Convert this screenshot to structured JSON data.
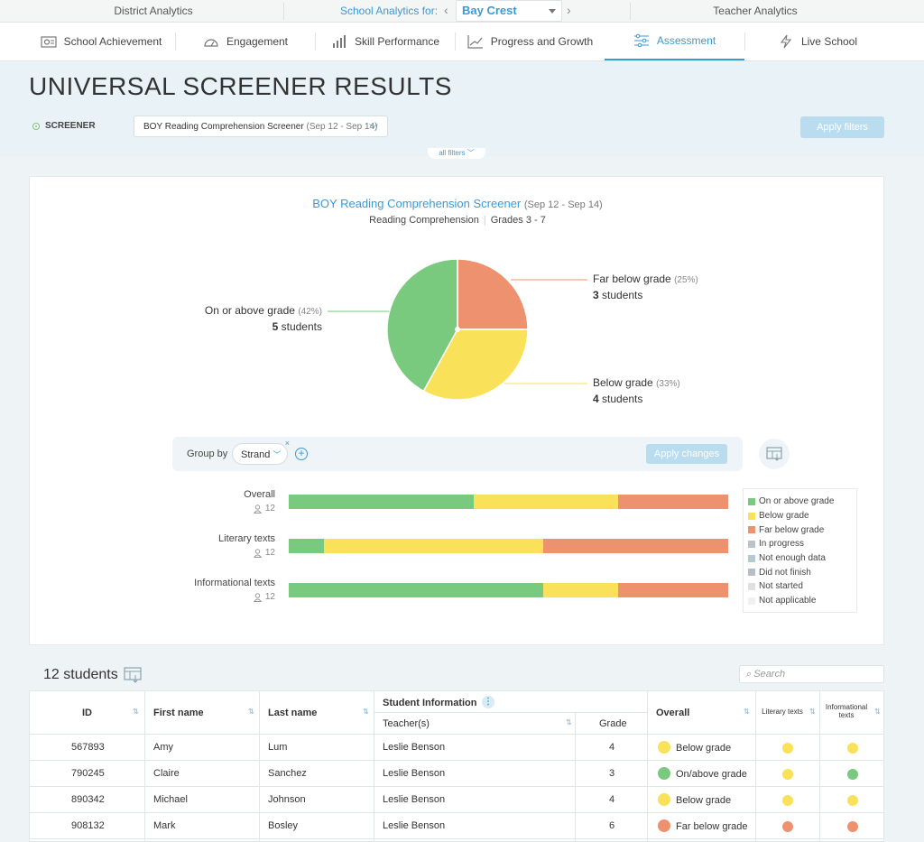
{
  "topnav": {
    "district": "District Analytics",
    "school_label": "School Analytics for:",
    "school": "Bay Crest",
    "teacher": "Teacher Analytics"
  },
  "tabs": [
    {
      "label": "School Achievement",
      "icon": "school-achievement-icon"
    },
    {
      "label": "Engagement",
      "icon": "gauge-icon"
    },
    {
      "label": "Skill Performance",
      "icon": "bar-chart-icon"
    },
    {
      "label": "Progress and Growth",
      "icon": "line-chart-icon"
    },
    {
      "label": "Assessment",
      "icon": "sliders-icon",
      "active": true
    },
    {
      "label": "Live School",
      "icon": "lightning-icon"
    }
  ],
  "page": {
    "title": "UNIVERSAL SCREENER RESULTS",
    "screener_label": "SCREENER",
    "screener_value": "BOY Reading Comprehension Screener",
    "screener_dates": "(Sep 12 - Sep 14)",
    "apply_filters": "Apply filters",
    "all_filters": "all filters"
  },
  "chart": {
    "title": "BOY Reading Comprehension Screener",
    "dates": "(Sep 12 - Sep 14)",
    "subject": "Reading Comprehension",
    "grades": "Grades 3 - 7",
    "labels": {
      "far_below": {
        "name": "Far below grade",
        "pct": "(25%)",
        "count": "3",
        "unit": "students"
      },
      "below": {
        "name": "Below grade",
        "pct": "(33%)",
        "count": "4",
        "unit": "students"
      },
      "on_above": {
        "name": "On or above grade",
        "pct": "(42%)",
        "count": "5",
        "unit": "students"
      }
    }
  },
  "chart_data": {
    "type": "pie",
    "categories": [
      "Far below grade",
      "Below grade",
      "On or above grade"
    ],
    "values": [
      25,
      33,
      42
    ],
    "counts": [
      3,
      4,
      5
    ],
    "colors": [
      "#ee916e",
      "#f9e15a",
      "#79c97e"
    ]
  },
  "groupby": {
    "label": "Group by",
    "value": "Strand",
    "apply": "Apply changes"
  },
  "strands": [
    {
      "name": "Overall",
      "count": "12",
      "segments": [
        42,
        33,
        25
      ]
    },
    {
      "name": "Literary texts",
      "count": "12",
      "segments": [
        8,
        50,
        42
      ]
    },
    {
      "name": "Informational texts",
      "count": "12",
      "segments": [
        58,
        17,
        25
      ]
    }
  ],
  "legend": [
    {
      "label": "On or above grade",
      "color": "#79c97e"
    },
    {
      "label": "Below grade",
      "color": "#f9e15a"
    },
    {
      "label": "Far below grade",
      "color": "#ee916e"
    },
    {
      "label": "In progress",
      "color": "#b9c4ca"
    },
    {
      "label": "Not enough data",
      "color": "#b5c9d3"
    },
    {
      "label": "Did not finish",
      "color": "#b3bec6"
    },
    {
      "label": "Not started",
      "color": "#dde1e3"
    },
    {
      "label": "Not applicable",
      "color": "#eef1f2"
    }
  ],
  "students": {
    "title": "12 students",
    "search_placeholder": "Search",
    "headers": {
      "id": "ID",
      "first": "First name",
      "last": "Last name",
      "info": "Student Information",
      "teacher": "Teacher(s)",
      "grade": "Grade",
      "overall": "Overall",
      "literary": "Literary texts",
      "informational": "Informational texts"
    },
    "rows": [
      {
        "id": "567893",
        "first": "Amy",
        "last": "Lum",
        "teacher": "Leslie Benson",
        "grade": "4",
        "overall": "Below grade",
        "overall_color": "#f9e15a",
        "literary_color": "#f9e15a",
        "informational_color": "#f9e15a"
      },
      {
        "id": "790245",
        "first": "Claire",
        "last": "Sanchez",
        "teacher": "Leslie Benson",
        "grade": "3",
        "overall": "On/above grade",
        "overall_color": "#79c97e",
        "literary_color": "#f9e15a",
        "informational_color": "#79c97e"
      },
      {
        "id": "890342",
        "first": "Michael",
        "last": "Johnson",
        "teacher": "Leslie Benson",
        "grade": "4",
        "overall": "Below grade",
        "overall_color": "#f9e15a",
        "literary_color": "#f9e15a",
        "informational_color": "#f9e15a"
      },
      {
        "id": "908132",
        "first": "Mark",
        "last": "Bosley",
        "teacher": "Leslie Benson",
        "grade": "6",
        "overall": "Far below grade",
        "overall_color": "#ee916e",
        "literary_color": "#ee916e",
        "informational_color": "#ee916e"
      }
    ]
  }
}
